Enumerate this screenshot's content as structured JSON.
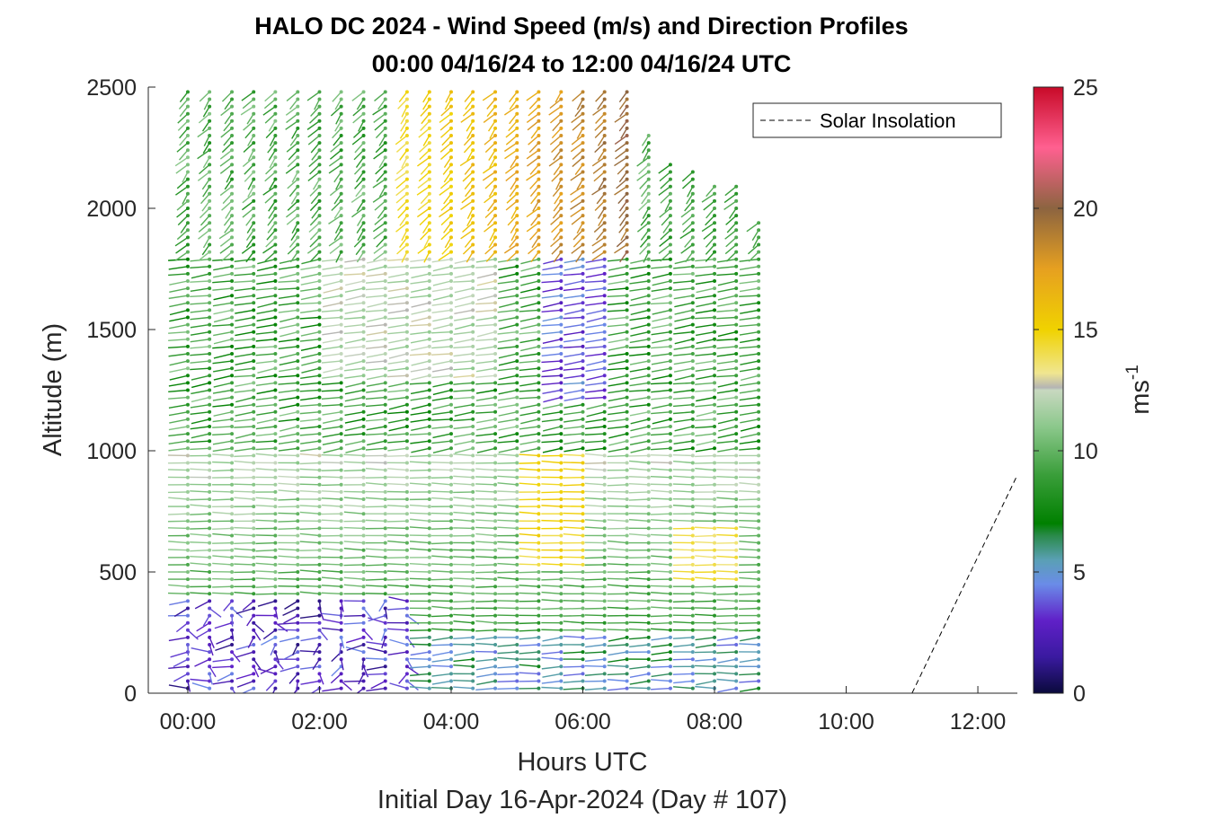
{
  "chart_data": {
    "type": "wind-barb-profile",
    "title": "HALO DC 2024 - Wind Speed (m/s) and Direction Profiles",
    "subtitle": "00:00 04/16/24 to 12:00 04/16/24  UTC",
    "xlabel": "Hours UTC",
    "xlabel2": "Initial Day 16-Apr-2024 (Day # 107)",
    "ylabel": "Altitude (m)",
    "colorbar_label": "ms",
    "colorbar_label_sup": "-1",
    "xlim": [
      -0.6,
      12.6
    ],
    "ylim": [
      0,
      2500
    ],
    "x_ticks": [
      0,
      2,
      4,
      6,
      8,
      10,
      12
    ],
    "x_tick_labels": [
      "00:00",
      "02:00",
      "04:00",
      "06:00",
      "08:00",
      "10:00",
      "12:00"
    ],
    "y_ticks": [
      0,
      500,
      1000,
      1500,
      2000,
      2500
    ],
    "y_tick_labels": [
      "0",
      "500",
      "1000",
      "1500",
      "2000",
      "2500"
    ],
    "colorbar_ticks": [
      0,
      5,
      10,
      15,
      20,
      25
    ],
    "colorbar_tick_labels": [
      "0",
      "5",
      "10",
      "15",
      "20",
      "25"
    ],
    "colorbar_range": [
      0,
      25
    ],
    "legend": {
      "position": "top-right",
      "entries": [
        "Solar Insolation"
      ]
    },
    "solar_insolation": {
      "x": [
        -0.6,
        11.0,
        12.6
      ],
      "y": [
        0,
        0,
        900
      ]
    },
    "profile_times": [
      0.0,
      0.33,
      0.67,
      1.0,
      1.33,
      1.67,
      2.0,
      2.33,
      2.67,
      3.0,
      3.33,
      3.67,
      4.0,
      4.33,
      4.67,
      5.0,
      5.33,
      5.67,
      6.0,
      6.33,
      6.67,
      7.0,
      7.33,
      7.67,
      8.0,
      8.33,
      8.67
    ],
    "profile_top_altitudes": [
      2500,
      2500,
      2500,
      2500,
      2500,
      2500,
      2500,
      2500,
      2500,
      2500,
      2500,
      2500,
      2500,
      2500,
      2500,
      2500,
      2500,
      2500,
      2500,
      2500,
      2500,
      2300,
      2200,
      2150,
      2100,
      2100,
      1950
    ],
    "altitude_step": 30,
    "colormap": [
      [
        0,
        "#0a0a3c"
      ],
      [
        1.5,
        "#3a1aa0"
      ],
      [
        3,
        "#6020c8"
      ],
      [
        4.5,
        "#6a8ce8"
      ],
      [
        5.5,
        "#5aa0b4"
      ],
      [
        6.5,
        "#2a8a4a"
      ],
      [
        7,
        "#008000"
      ],
      [
        9,
        "#3a9e3a"
      ],
      [
        11,
        "#8cc88c"
      ],
      [
        12.5,
        "#c8d8c0"
      ],
      [
        12.6,
        "#b4b4b4"
      ],
      [
        13.2,
        "#f0e690"
      ],
      [
        15,
        "#f0d200"
      ],
      [
        17.5,
        "#e6a020"
      ],
      [
        20,
        "#8c6440"
      ],
      [
        22.5,
        "#ff6090"
      ],
      [
        25,
        "#c80a28"
      ]
    ]
  }
}
